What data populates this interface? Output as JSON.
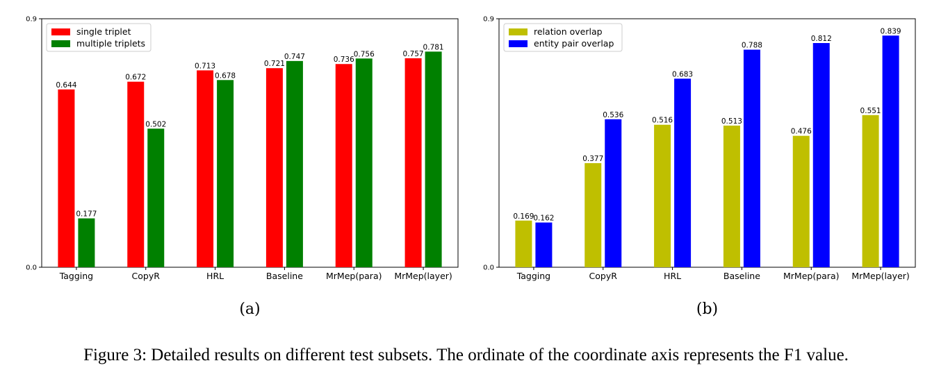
{
  "caption": "Figure 3: Detailed results on different test subsets. The ordinate of the coordinate axis represents the F1 value.",
  "chart_data": [
    {
      "type": "bar",
      "panel_label": "(a)",
      "categories": [
        "Tagging",
        "CopyR",
        "HRL",
        "Baseline",
        "MrMep(para)",
        "MrMep(layer)"
      ],
      "series": [
        {
          "name": "single triplet",
          "color": "#ff0000",
          "values": [
            0.644,
            0.672,
            0.713,
            0.721,
            0.736,
            0.757
          ]
        },
        {
          "name": "multiple triplets",
          "color": "#008000",
          "values": [
            0.177,
            0.502,
            0.678,
            0.747,
            0.756,
            0.781
          ]
        }
      ],
      "ylim": [
        0,
        0.9
      ],
      "yticks": [
        0.0,
        0.9
      ],
      "ytick_labels": [
        "0.0",
        "0.9"
      ],
      "legend": "top-left",
      "grid": false
    },
    {
      "type": "bar",
      "panel_label": "(b)",
      "categories": [
        "Tagging",
        "CopyR",
        "HRL",
        "Baseline",
        "MrMep(para)",
        "MrMep(layer)"
      ],
      "series": [
        {
          "name": "relation overlap",
          "color": "#bfbf00",
          "values": [
            0.169,
            0.377,
            0.516,
            0.513,
            0.476,
            0.551
          ]
        },
        {
          "name": "entity pair overlap",
          "color": "#0000ff",
          "values": [
            0.162,
            0.536,
            0.683,
            0.788,
            0.812,
            0.839
          ]
        }
      ],
      "ylim": [
        0,
        0.9
      ],
      "yticks": [
        0.0,
        0.9
      ],
      "ytick_labels": [
        "0.0",
        "0.9"
      ],
      "legend": "top-left",
      "grid": false
    }
  ]
}
